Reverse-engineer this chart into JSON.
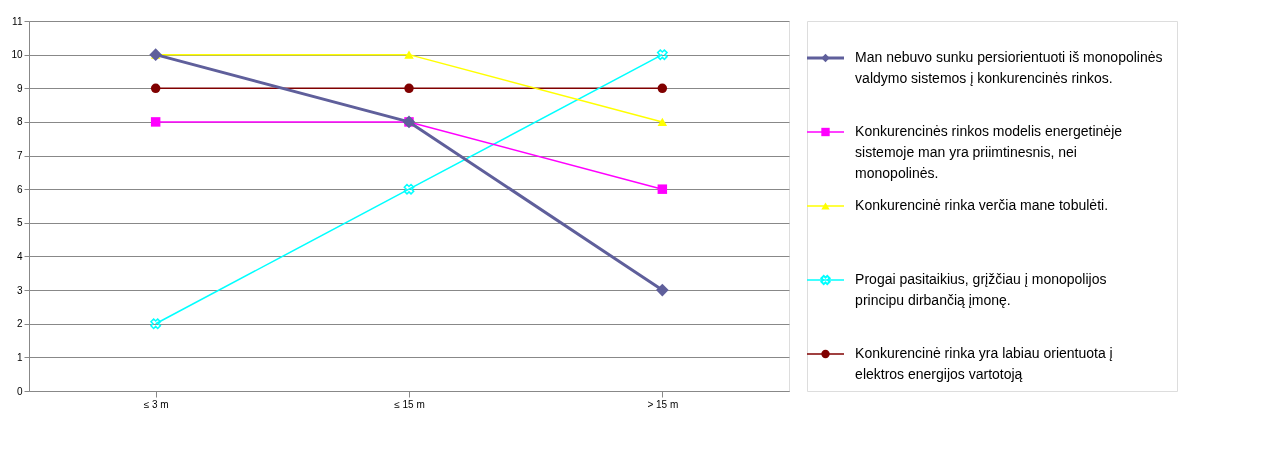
{
  "chart_data": {
    "type": "line",
    "categories": [
      "≤ 3 m",
      "≤ 15 m",
      "> 15 m"
    ],
    "ylim": [
      0,
      11
    ],
    "yticks": [
      0,
      1,
      2,
      3,
      4,
      5,
      6,
      7,
      8,
      9,
      10,
      11
    ],
    "grid": "y",
    "legend": "right",
    "series": [
      {
        "name": "Man nebuvo sunku persiorientuoti iš monopolinės valdymo sistemos į konkurencinės rinkos.",
        "color": "#5f5f9b",
        "marker": "diamond",
        "values": [
          10,
          8,
          3
        ]
      },
      {
        "name": "Konkurencinės rinkos modelis energetinėje sistemoje man yra priimtinesnis, nei monopolinės.",
        "color": "#ff00ff",
        "marker": "square",
        "values": [
          8,
          8,
          6
        ]
      },
      {
        "name": "Konkurencinė rinka verčia mane tobulėti.",
        "color": "#ffff00",
        "marker": "triangle",
        "values": [
          10,
          10,
          8
        ]
      },
      {
        "name": "Progai pasitaikius, grįžčiau į monopolijos principu dirbančią įmonę.",
        "color": "#00ffff",
        "marker": "cross",
        "values": [
          2,
          6,
          10
        ]
      },
      {
        "name": "Konkurencinė rinka yra labiau orientuota į elektros energijos vartotoją",
        "color": "#800000",
        "marker": "circle",
        "values": [
          9,
          9,
          9
        ]
      }
    ]
  }
}
